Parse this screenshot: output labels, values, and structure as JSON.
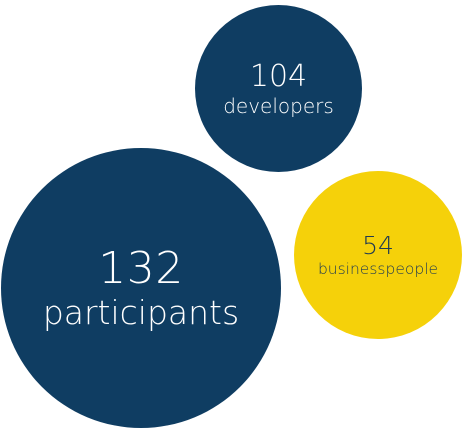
{
  "colors": {
    "navy": "#0f3d62",
    "yellow": "#f5d10a",
    "light_text": "#ffffff",
    "dark_text": "#1f3a52"
  },
  "bubbles": [
    {
      "value": "132",
      "label": "participants",
      "color": "navy",
      "text_color": "light_text"
    },
    {
      "value": "104",
      "label": "developers",
      "color": "navy",
      "text_color": "light_text"
    },
    {
      "value": "54",
      "label": "businesspeople",
      "color": "yellow",
      "text_color": "dark_text"
    }
  ]
}
